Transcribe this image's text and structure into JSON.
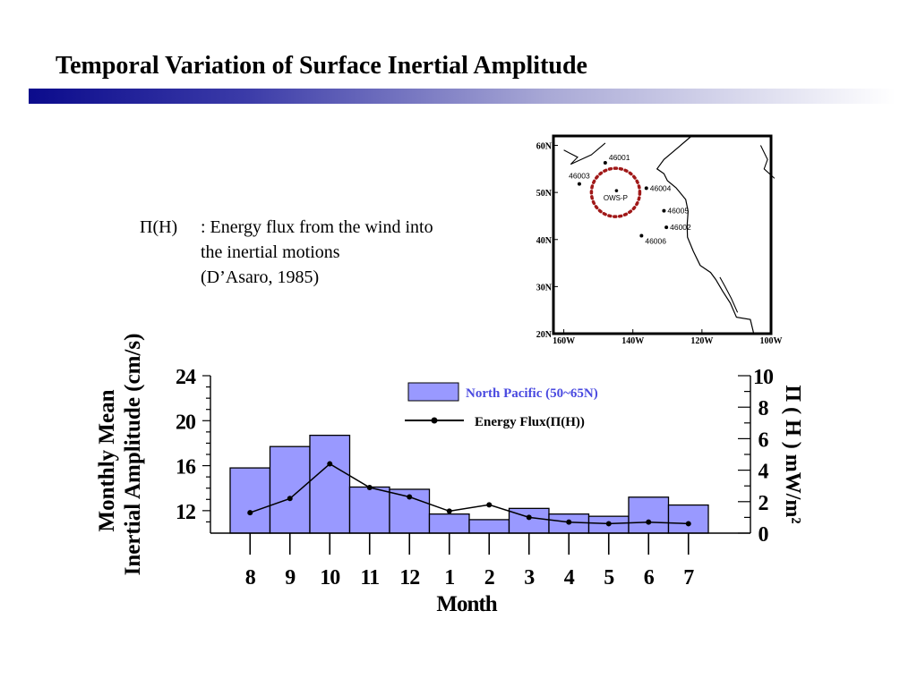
{
  "slide": {
    "title": "Temporal Variation of Surface Inertial Amplitude",
    "accent_color": "#0b0b8c"
  },
  "definition": {
    "symbol": "Π(H)",
    "lines": [
      ": Energy flux from the wind into",
      "the inertial motions",
      "(D’Asaro, 1985)"
    ]
  },
  "map": {
    "lat_labels": [
      "60N",
      "50N",
      "40N",
      "30N",
      "20N"
    ],
    "lon_labels": [
      "160W",
      "140W",
      "120W",
      "100W"
    ],
    "stations": [
      {
        "id": "46001",
        "lon": -148,
        "lat": 56.3
      },
      {
        "id": "46003",
        "lon": -155.5,
        "lat": 51.8
      },
      {
        "id": "46004",
        "lon": -136.1,
        "lat": 50.9
      },
      {
        "id": "46005",
        "lon": -131,
        "lat": 46.1
      },
      {
        "id": "46002",
        "lon": -130.3,
        "lat": 42.6
      },
      {
        "id": "46006",
        "lon": -137.5,
        "lat": 40.8
      }
    ],
    "ows": {
      "label": "OWS-P",
      "lon": -145,
      "lat": 50,
      "circle_color": "#a01818"
    }
  },
  "chart_data": {
    "type": "bar",
    "categories": [
      "8",
      "9",
      "10",
      "11",
      "12",
      "1",
      "2",
      "3",
      "4",
      "5",
      "6",
      "7"
    ],
    "xlabel": "Month",
    "ylabel": [
      "Monthly Mean",
      "Inertial Amplitude (cm/s)"
    ],
    "y2label": "Π ( H ) mW/m²",
    "ylim": [
      10,
      24
    ],
    "y_ticks": [
      12,
      16,
      20,
      24
    ],
    "y2lim": [
      0,
      10
    ],
    "y2_ticks": [
      0,
      2,
      4,
      6,
      8,
      10
    ],
    "series": [
      {
        "name": "North Pacific (50~65N)",
        "type": "bar",
        "axis": "left",
        "color": "#9999ff",
        "values": [
          15.8,
          17.7,
          18.7,
          14.1,
          13.9,
          11.7,
          11.2,
          12.2,
          11.7,
          11.5,
          13.2,
          12.5
        ]
      },
      {
        "name": "Energy Flux(Π(H))",
        "type": "line",
        "axis": "right",
        "color": "#000000",
        "values": [
          1.3,
          2.2,
          4.4,
          2.9,
          2.3,
          1.4,
          1.8,
          1.0,
          0.7,
          0.6,
          0.7,
          0.6
        ]
      }
    ],
    "legend_position": "top-right"
  }
}
